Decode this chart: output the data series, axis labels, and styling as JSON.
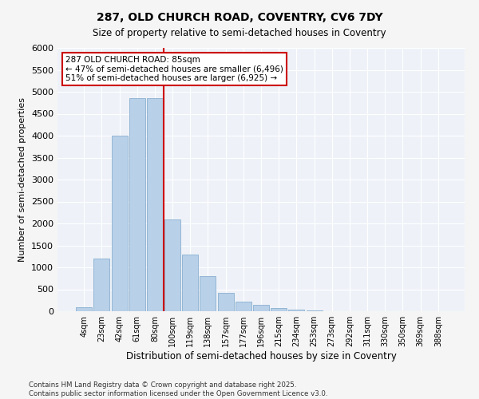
{
  "title_line1": "287, OLD CHURCH ROAD, COVENTRY, CV6 7DY",
  "title_line2": "Size of property relative to semi-detached houses in Coventry",
  "xlabel": "Distribution of semi-detached houses by size in Coventry",
  "ylabel": "Number of semi-detached properties",
  "categories": [
    "4sqm",
    "23sqm",
    "42sqm",
    "61sqm",
    "80sqm",
    "100sqm",
    "119sqm",
    "138sqm",
    "157sqm",
    "177sqm",
    "196sqm",
    "215sqm",
    "234sqm",
    "253sqm",
    "273sqm",
    "292sqm",
    "311sqm",
    "330sqm",
    "350sqm",
    "369sqm",
    "388sqm"
  ],
  "values": [
    100,
    1200,
    4000,
    4850,
    4850,
    2100,
    1300,
    800,
    420,
    210,
    150,
    80,
    30,
    10,
    5,
    2,
    2,
    1,
    1,
    1,
    0
  ],
  "bar_color": "#b8d0e8",
  "bar_edgecolor": "#8ab0d0",
  "vline_pos": 4.5,
  "vline_color": "#cc0000",
  "annotation_title": "287 OLD CHURCH ROAD: 85sqm",
  "annotation_line1": "← 47% of semi-detached houses are smaller (6,496)",
  "annotation_line2": "51% of semi-detached houses are larger (6,925) →",
  "annotation_box_edgecolor": "#cc0000",
  "ylim": [
    0,
    6000
  ],
  "yticks": [
    0,
    500,
    1000,
    1500,
    2000,
    2500,
    3000,
    3500,
    4000,
    4500,
    5000,
    5500,
    6000
  ],
  "background_color": "#eef2f8",
  "grid_color": "#ffffff",
  "fig_facecolor": "#f5f5f5",
  "footer_line1": "Contains HM Land Registry data © Crown copyright and database right 2025.",
  "footer_line2": "Contains public sector information licensed under the Open Government Licence v3.0."
}
